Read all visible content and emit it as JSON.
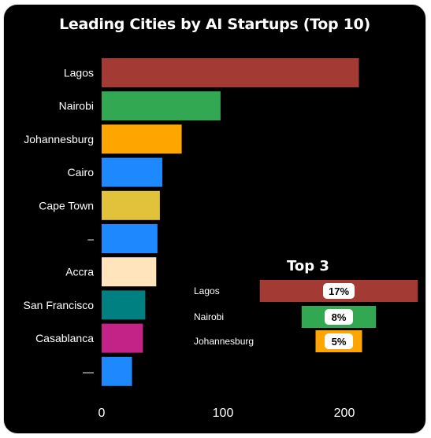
{
  "chart_data": [
    {
      "type": "bar",
      "orientation": "horizontal",
      "title": "Leading Cities by AI Startups (Top 10)",
      "categories": [
        "Lagos",
        "Nairobi",
        "Johannesburg",
        "Cairo",
        "Cape Town",
        "–",
        "Accra",
        "San Francisco",
        "Casablanca",
        "—"
      ],
      "values": [
        212,
        98,
        66,
        50,
        48,
        46,
        45,
        36,
        34,
        25
      ],
      "colors": [
        "#a33a33",
        "#33a852",
        "#ffa500",
        "#1e88ff",
        "#e2c23a",
        "#1e88ff",
        "#ffe4bc",
        "#008080",
        "#c32387",
        "#1e88ff"
      ],
      "xlim": [
        0,
        260
      ],
      "xticks": [
        0,
        100,
        200
      ],
      "xlabel": "",
      "ylabel": "",
      "grid": false,
      "legend": "none"
    },
    {
      "type": "bar",
      "orientation": "horizontal",
      "style": "funnel",
      "title": "Top 3",
      "categories": [
        "Lagos",
        "Nairobi",
        "Johannesburg"
      ],
      "values": [
        17,
        8,
        5
      ],
      "value_labels": [
        "17%",
        "8%",
        "5%"
      ],
      "colors": [
        "#a33a33",
        "#33a852",
        "#ffa500"
      ]
    }
  ]
}
